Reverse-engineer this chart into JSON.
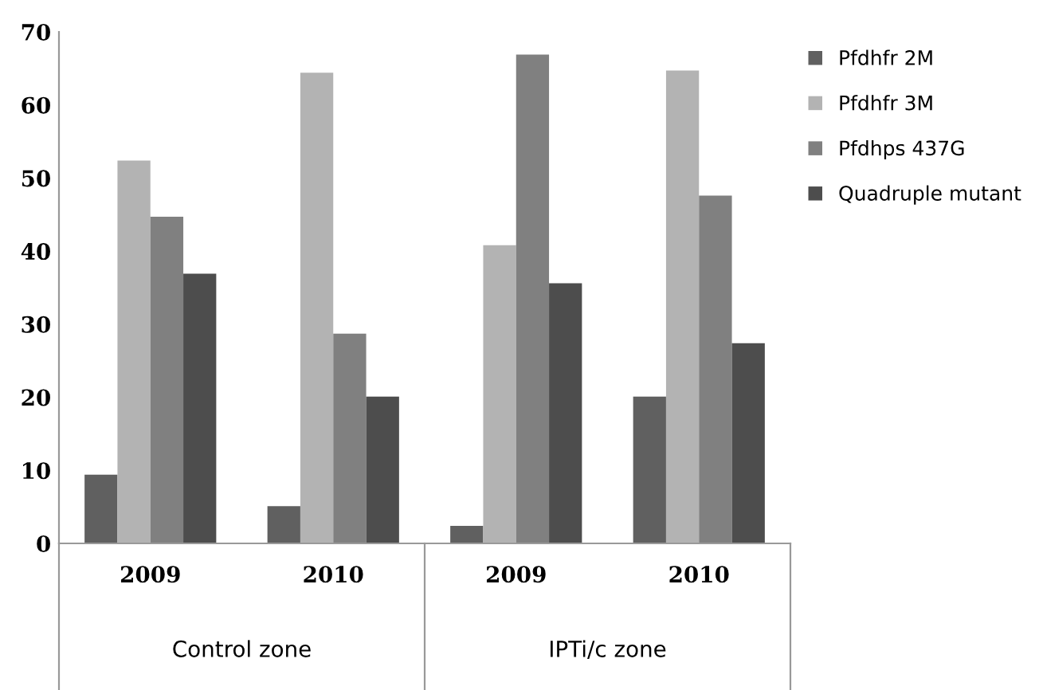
{
  "chart_data": {
    "type": "bar",
    "categories": [
      "2009",
      "2010",
      "2009",
      "2010"
    ],
    "series": [
      {
        "name": "Pfdhfr 2M",
        "color": "#606060",
        "values": [
          9.4,
          5.1,
          2.4,
          20.1
        ]
      },
      {
        "name": "Pfdhfr 3M",
        "color": "#b3b3b3",
        "values": [
          52.4,
          64.4,
          40.8,
          64.7
        ]
      },
      {
        "name": "Pfdhps 437G",
        "color": "#808080",
        "values": [
          44.7,
          28.7,
          66.9,
          47.6
        ]
      },
      {
        "name": "Quadruple mutant",
        "color": "#4d4d4d",
        "values": [
          36.9,
          20.1,
          35.6,
          27.4
        ]
      }
    ],
    "annotations": [
      "Control zone",
      "IPTi/c zone"
    ],
    "ylim": [
      0,
      70
    ],
    "yticks": [
      0,
      10,
      20,
      30,
      40,
      50,
      60,
      70
    ],
    "grid": false,
    "legend": "top right"
  }
}
